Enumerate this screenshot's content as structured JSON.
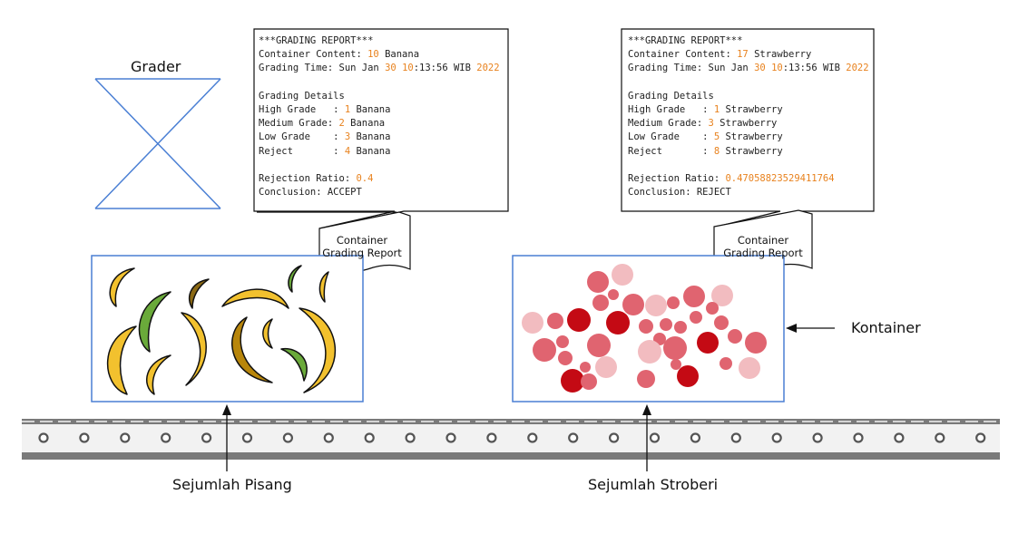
{
  "grader": {
    "label": "Grader"
  },
  "reports": [
    {
      "header": "***GRADING REPORT***",
      "content_label": "Container Content: ",
      "content_count": "10",
      "content_item": " Banana",
      "time_label": "Grading Time: Sun Jan ",
      "time_day": "30",
      "time_hour": "10",
      "time_rest": ":13:56 WIB ",
      "time_year": "2022",
      "details_title": "Grading Details",
      "grades": [
        {
          "label": "High Grade   : ",
          "value": "1",
          "item": " Banana"
        },
        {
          "label": "Medium Grade: ",
          "value": "2",
          "item": " Banana"
        },
        {
          "label": "Low Grade    : ",
          "value": "3",
          "item": " Banana"
        },
        {
          "label": "Reject       : ",
          "value": "4",
          "item": " Banana"
        }
      ],
      "ratio_label": "Rejection Ratio: ",
      "ratio_value": "0.4",
      "conclusion": "Conclusion: ACCEPT",
      "callout": [
        "Container",
        "Grading Report"
      ]
    },
    {
      "header": "***GRADING REPORT***",
      "content_label": "Container Content: ",
      "content_count": "17",
      "content_item": " Strawberry",
      "time_label": "Grading Time: Sun Jan ",
      "time_day": "30",
      "time_hour": "10",
      "time_rest": ":13:56 WIB ",
      "time_year": "2022",
      "details_title": "Grading Details",
      "grades": [
        {
          "label": "High Grade   : ",
          "value": "1",
          "item": " Strawberry"
        },
        {
          "label": "Medium Grade: ",
          "value": "3",
          "item": " Strawberry"
        },
        {
          "label": "Low Grade    : ",
          "value": "5",
          "item": " Strawberry"
        },
        {
          "label": "Reject       : ",
          "value": "8",
          "item": " Strawberry"
        }
      ],
      "ratio_label": "Rejection Ratio: ",
      "ratio_value": "0.47058823529411764",
      "conclusion": "Conclusion: REJECT",
      "callout": [
        "Container",
        "Grading Report"
      ]
    }
  ],
  "labels": {
    "container": "Kontainer",
    "bananas": "Sejumlah Pisang",
    "strawberries": "Sejumlah Stroberi"
  },
  "colors": {
    "box_border": "#4a7fd4",
    "accent_number": "#e8821e",
    "banana_yellow": "#f2c12e",
    "banana_dark": "#b8860b",
    "banana_brown": "#8b6914",
    "banana_green": "#6aaa3a",
    "strawberry_dark": "#c40a14",
    "strawberry_mid": "#e06470",
    "strawberry_light": "#f2bcc0",
    "belt_dark": "#7a7a7a",
    "belt_light": "#f2f2f2"
  }
}
